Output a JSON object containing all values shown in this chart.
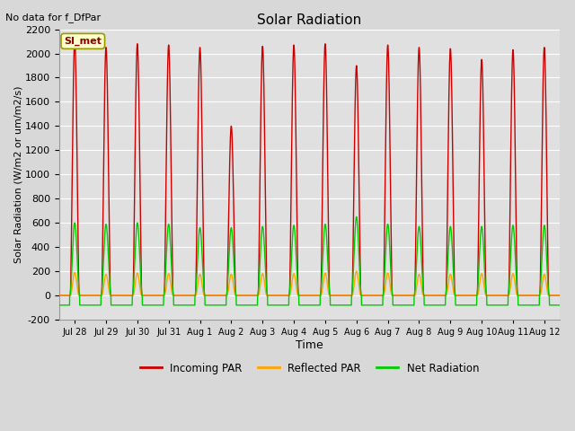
{
  "title": "Solar Radiation",
  "subtitle": "No data for f_DfPar",
  "xlabel": "Time",
  "ylabel": "Solar Radiation (W/m2 or um/m2/s)",
  "ylim": [
    -200,
    2200
  ],
  "yticks": [
    -200,
    0,
    200,
    400,
    600,
    800,
    1000,
    1200,
    1400,
    1600,
    1800,
    2000,
    2200
  ],
  "background_color": "#d8d8d8",
  "plot_bg_color": "#e0e0e0",
  "grid_color": "#ffffff",
  "n_days": 16,
  "day_labels": [
    "Jul 28",
    "Jul 29",
    "Jul 30",
    "Jul 31",
    "Aug 1",
    "Aug 2",
    "Aug 3",
    "Aug 4",
    "Aug 5",
    "Aug 6",
    "Aug 7",
    "Aug 8",
    "Aug 9",
    "Aug 10",
    "Aug 11",
    "Aug 12"
  ],
  "incoming_color": "#cc0000",
  "reflected_color": "#ffa500",
  "net_color": "#00cc00",
  "line_width": 1.0,
  "legend_label": "SI_met",
  "legend_items": [
    "Incoming PAR",
    "Reflected PAR",
    "Net Radiation"
  ],
  "legend_colors": [
    "#cc0000",
    "#ffa500",
    "#00cc00"
  ],
  "incoming_peaks": [
    2100,
    2050,
    2080,
    2070,
    2050,
    1400,
    2060,
    2070,
    2080,
    1900,
    2070,
    2050,
    2040,
    1950,
    2030,
    2050
  ],
  "net_peaks": [
    600,
    590,
    600,
    590,
    560,
    560,
    570,
    580,
    590,
    650,
    590,
    570,
    570,
    570,
    580,
    580
  ],
  "reflected_peaks": [
    190,
    175,
    185,
    180,
    175,
    175,
    180,
    180,
    185,
    200,
    185,
    175,
    175,
    180,
    180,
    175
  ]
}
